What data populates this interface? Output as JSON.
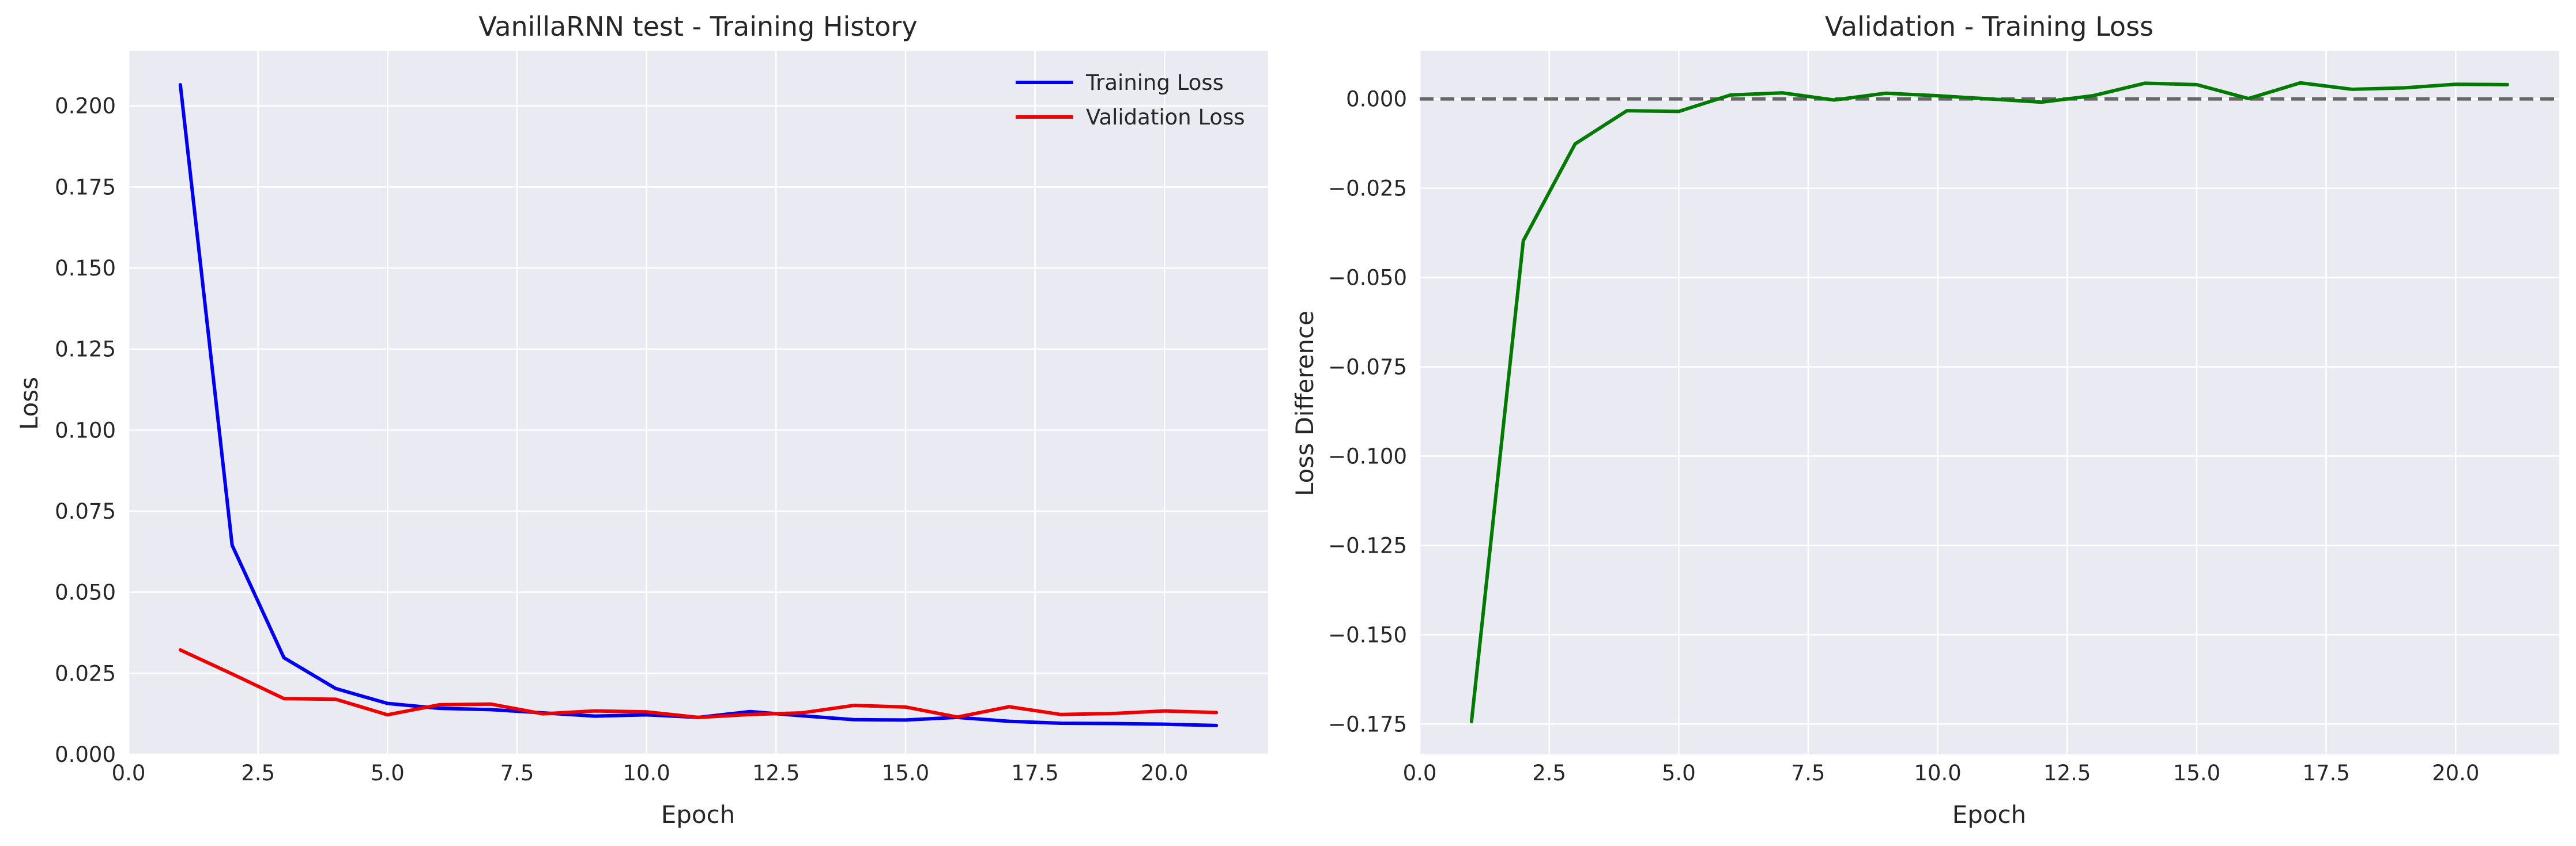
{
  "chart_data": [
    {
      "type": "line",
      "title": "VanillaRNN test - Training History",
      "xlabel": "Epoch",
      "ylabel": "Loss",
      "xlim": [
        0,
        22
      ],
      "ylim": [
        0,
        0.217
      ],
      "xticks": [
        0,
        2.5,
        5,
        7.5,
        10,
        12.5,
        15,
        17.5,
        20
      ],
      "xtick_labels": [
        "0.0",
        "2.5",
        "5.0",
        "7.5",
        "10.0",
        "12.5",
        "15.0",
        "17.5",
        "20.0"
      ],
      "yticks": [
        0,
        0.025,
        0.05,
        0.075,
        0.1,
        0.125,
        0.15,
        0.175,
        0.2
      ],
      "ytick_labels": [
        "0.000",
        "0.025",
        "0.050",
        "0.075",
        "0.100",
        "0.125",
        "0.150",
        "0.175",
        "0.200"
      ],
      "grid": true,
      "legend_position": "top-right",
      "x": [
        1,
        2,
        3,
        4,
        5,
        6,
        7,
        8,
        9,
        10,
        11,
        12,
        13,
        14,
        15,
        16,
        17,
        18,
        19,
        20,
        21
      ],
      "series": [
        {
          "name": "Training Loss",
          "color": "#0000ee",
          "values": [
            0.2065,
            0.0645,
            0.0298,
            0.0203,
            0.0157,
            0.0142,
            0.0138,
            0.0128,
            0.0118,
            0.0122,
            0.0114,
            0.0132,
            0.0119,
            0.0107,
            0.0106,
            0.0114,
            0.0102,
            0.0096,
            0.0095,
            0.0093,
            0.0089
          ]
        },
        {
          "name": "Validation Loss",
          "color": "#ee0000",
          "values": [
            0.0322,
            0.0248,
            0.0172,
            0.017,
            0.0122,
            0.0153,
            0.0155,
            0.0125,
            0.0134,
            0.0131,
            0.0114,
            0.0123,
            0.0128,
            0.0151,
            0.0146,
            0.0115,
            0.0147,
            0.0123,
            0.0126,
            0.0134,
            0.0129
          ]
        }
      ]
    },
    {
      "type": "line",
      "title": "Validation - Training Loss",
      "xlabel": "Epoch",
      "ylabel": "Loss Difference",
      "xlim": [
        0,
        22
      ],
      "ylim": [
        -0.1835,
        0.0135
      ],
      "xticks": [
        0,
        2.5,
        5,
        7.5,
        10,
        12.5,
        15,
        17.5,
        20
      ],
      "xtick_labels": [
        "0.0",
        "2.5",
        "5.0",
        "7.5",
        "10.0",
        "12.5",
        "15.0",
        "17.5",
        "20.0"
      ],
      "yticks": [
        -0.175,
        -0.15,
        -0.125,
        -0.1,
        -0.075,
        -0.05,
        -0.025,
        0
      ],
      "ytick_labels": [
        "−0.175",
        "−0.150",
        "−0.125",
        "−0.100",
        "−0.075",
        "−0.050",
        "−0.025",
        "0.000"
      ],
      "grid": true,
      "reference_line": {
        "y": 0,
        "style": "dashed",
        "color": "#666666"
      },
      "x": [
        1,
        2,
        3,
        4,
        5,
        6,
        7,
        8,
        9,
        10,
        11,
        12,
        13,
        14,
        15,
        16,
        17,
        18,
        19,
        20,
        21
      ],
      "series": [
        {
          "color": "#007a00",
          "values": [
            -0.1743,
            -0.0397,
            -0.0126,
            -0.0033,
            -0.0035,
            0.0011,
            0.0017,
            -0.0003,
            0.0016,
            0.0009,
            0.0,
            -0.0009,
            0.0009,
            0.0044,
            0.004,
            0.0001,
            0.0045,
            0.0027,
            0.0031,
            0.0041,
            0.004
          ]
        }
      ]
    }
  ]
}
